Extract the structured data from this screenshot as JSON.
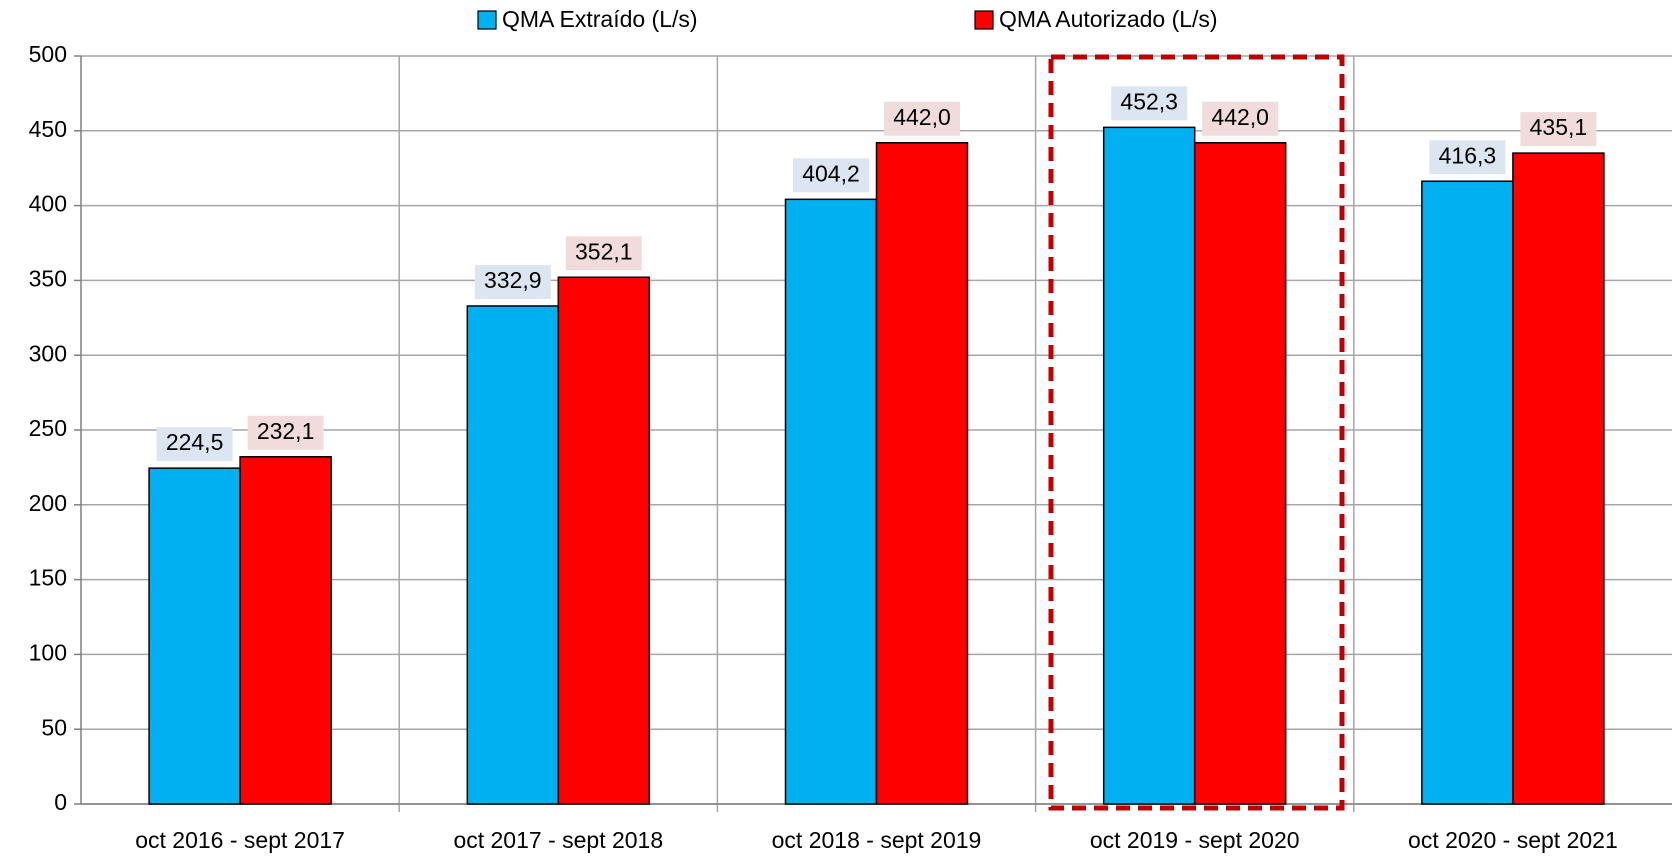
{
  "chart_data": {
    "type": "bar",
    "categories": [
      "oct 2016 - sept 2017",
      "oct 2017 - sept 2018",
      "oct 2018 - sept 2019",
      "oct 2019 - sept 2020",
      "oct 2020 - sept 2021"
    ],
    "series": [
      {
        "name": "QMA Extraído (L/s)",
        "color": "#00b0f0",
        "values": [
          224.5,
          332.9,
          404.2,
          452.3,
          416.3
        ],
        "value_labels": [
          "224,5",
          "332,9",
          "404,2",
          "452,3",
          "416,3"
        ]
      },
      {
        "name": "QMA Autorizado (L/s)",
        "color": "#ff0000",
        "values": [
          232.1,
          352.1,
          442.0,
          442.0,
          435.1
        ],
        "value_labels": [
          "232,1",
          "352,1",
          "442,0",
          "442,0",
          "435,1"
        ]
      }
    ],
    "ylim": [
      0,
      500
    ],
    "yticks": [
      0,
      50,
      100,
      150,
      200,
      250,
      300,
      350,
      400,
      450,
      500
    ],
    "grid": true,
    "legend": "top"
  }
}
